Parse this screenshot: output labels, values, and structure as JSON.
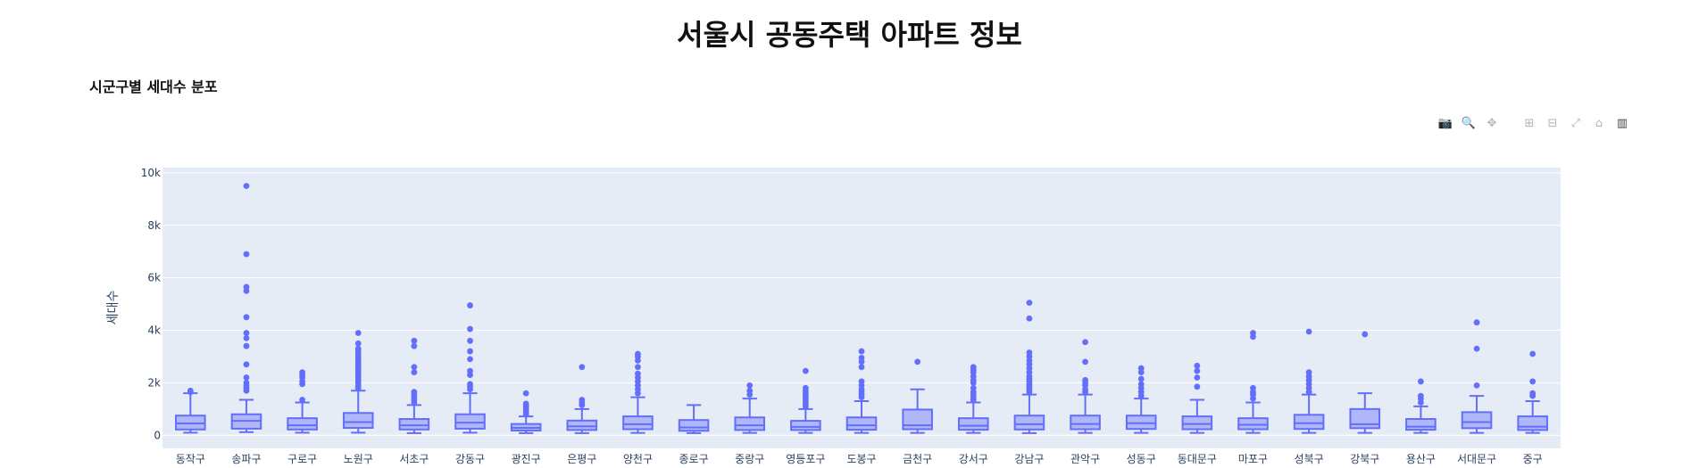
{
  "page_title": "서울시 공동주택 아파트 정보",
  "section_title": "시군구별 세대수 분포",
  "modebar": [
    {
      "name": "camera-icon",
      "glyph": "📷"
    },
    {
      "name": "zoom-icon",
      "glyph": "🔍"
    },
    {
      "name": "pan-icon",
      "glyph": "✥"
    },
    {
      "name": "zoom-in-icon",
      "glyph": "⊞"
    },
    {
      "name": "zoom-out-icon",
      "glyph": "⊟"
    },
    {
      "name": "autoscale-icon",
      "glyph": "⤢"
    },
    {
      "name": "home-icon",
      "glyph": "⌂"
    },
    {
      "name": "plotly-logo-icon",
      "glyph": "▥"
    }
  ],
  "chart_data": {
    "type": "box",
    "ylabel": "세대수",
    "xlabel": "",
    "ylim": [
      -500,
      10200
    ],
    "yticks": [
      0,
      2000,
      4000,
      6000,
      8000,
      10000
    ],
    "ytick_labels": [
      "0",
      "2k",
      "4k",
      "6k",
      "8k",
      "10k"
    ],
    "colors": {
      "box_fill": "#a9b1f8",
      "box_line": "#636efa",
      "plot_bg": "#e5ecf6",
      "grid": "#ffffff",
      "text": "#2a3f5f"
    },
    "grid": true,
    "categories": [
      "동작구",
      "송파구",
      "구로구",
      "노원구",
      "서초구",
      "강동구",
      "광진구",
      "은평구",
      "양천구",
      "종로구",
      "중랑구",
      "영등포구",
      "도봉구",
      "금천구",
      "강서구",
      "강남구",
      "관악구",
      "성동구",
      "동대문구",
      "마포구",
      "성북구",
      "강북구",
      "용산구",
      "서대문구",
      "중구"
    ],
    "boxes": [
      {
        "name": "동작구",
        "lower": 100,
        "q1": 220,
        "median": 450,
        "q3": 750,
        "upper": 1600,
        "outliers": [
          1650,
          1700
        ]
      },
      {
        "name": "송파구",
        "lower": 120,
        "q1": 250,
        "median": 550,
        "q3": 800,
        "upper": 1350,
        "outliers": [
          1700,
          1800,
          1900,
          2000,
          2200,
          2700,
          3400,
          3700,
          3900,
          4500,
          5500,
          5650,
          6900,
          9500
        ]
      },
      {
        "name": "구로구",
        "lower": 100,
        "q1": 220,
        "median": 380,
        "q3": 650,
        "upper": 1250,
        "outliers": [
          1350,
          1950,
          2050,
          2200,
          2300,
          2400
        ]
      },
      {
        "name": "노원구",
        "lower": 100,
        "q1": 280,
        "median": 500,
        "q3": 850,
        "upper": 1700,
        "outliers": [
          1800,
          1900,
          2000,
          2100,
          2200,
          2300,
          2400,
          2500,
          2600,
          2700,
          2800,
          2900,
          3000,
          3100,
          3200,
          3300,
          3500,
          3900
        ]
      },
      {
        "name": "서초구",
        "lower": 80,
        "q1": 220,
        "median": 380,
        "q3": 620,
        "upper": 1150,
        "outliers": [
          1250,
          1350,
          1450,
          1550,
          1650,
          2400,
          2600,
          3400,
          3600
        ]
      },
      {
        "name": "강동구",
        "lower": 100,
        "q1": 250,
        "median": 480,
        "q3": 800,
        "upper": 1600,
        "outliers": [
          1750,
          1850,
          1950,
          2300,
          2450,
          2900,
          3200,
          3600,
          4050,
          4950
        ]
      },
      {
        "name": "광진구",
        "lower": 80,
        "q1": 180,
        "median": 280,
        "q3": 430,
        "upper": 720,
        "outliers": [
          800,
          900,
          1000,
          1100,
          1200,
          1600
        ]
      },
      {
        "name": "은평구",
        "lower": 80,
        "q1": 200,
        "median": 340,
        "q3": 560,
        "upper": 1000,
        "outliers": [
          1150,
          1250,
          1350,
          2600
        ]
      },
      {
        "name": "양천구",
        "lower": 90,
        "q1": 230,
        "median": 420,
        "q3": 720,
        "upper": 1450,
        "outliers": [
          1600,
          1750,
          1900,
          2050,
          2200,
          2350,
          2600,
          2850,
          3000,
          3100
        ]
      },
      {
        "name": "종로구",
        "lower": 80,
        "q1": 170,
        "median": 300,
        "q3": 580,
        "upper": 1150,
        "outliers": []
      },
      {
        "name": "중랑구",
        "lower": 90,
        "q1": 200,
        "median": 380,
        "q3": 680,
        "upper": 1400,
        "outliers": [
          1550,
          1700,
          1900
        ]
      },
      {
        "name": "영등포구",
        "lower": 90,
        "q1": 200,
        "median": 320,
        "q3": 550,
        "upper": 1000,
        "outliers": [
          1100,
          1200,
          1300,
          1400,
          1500,
          1600,
          1700,
          1800,
          2450
        ]
      },
      {
        "name": "도봉구",
        "lower": 90,
        "q1": 210,
        "median": 380,
        "q3": 680,
        "upper": 1300,
        "outliers": [
          1450,
          1550,
          1650,
          1750,
          1900,
          2050,
          2600,
          2800,
          2950,
          3200
        ]
      },
      {
        "name": "금천구",
        "lower": 90,
        "q1": 230,
        "median": 380,
        "q3": 980,
        "upper": 1750,
        "outliers": [
          2800
        ]
      },
      {
        "name": "강서구",
        "lower": 90,
        "q1": 210,
        "median": 360,
        "q3": 650,
        "upper": 1250,
        "outliers": [
          1350,
          1450,
          1550,
          1650,
          1800,
          2000,
          2100,
          2250,
          2400,
          2500,
          2600
        ]
      },
      {
        "name": "강남구",
        "lower": 80,
        "q1": 220,
        "median": 420,
        "q3": 750,
        "upper": 1550,
        "outliers": [
          1650,
          1750,
          1850,
          1950,
          2050,
          2150,
          2250,
          2400,
          2550,
          2700,
          2850,
          3000,
          3150,
          4450,
          5050
        ]
      },
      {
        "name": "관악구",
        "lower": 90,
        "q1": 230,
        "median": 430,
        "q3": 750,
        "upper": 1550,
        "outliers": [
          1650,
          1750,
          1900,
          2000,
          2100,
          2800,
          3550
        ]
      },
      {
        "name": "성동구",
        "lower": 90,
        "q1": 240,
        "median": 460,
        "q3": 750,
        "upper": 1400,
        "outliers": [
          1500,
          1650,
          1800,
          1950,
          2150,
          2400,
          2550
        ]
      },
      {
        "name": "동대문구",
        "lower": 90,
        "q1": 230,
        "median": 430,
        "q3": 720,
        "upper": 1350,
        "outliers": [
          1850,
          2200,
          2450,
          2650
        ]
      },
      {
        "name": "마포구",
        "lower": 90,
        "q1": 230,
        "median": 400,
        "q3": 650,
        "upper": 1250,
        "outliers": [
          1400,
          1550,
          1650,
          1800,
          3750,
          3900
        ]
      },
      {
        "name": "성북구",
        "lower": 90,
        "q1": 240,
        "median": 460,
        "q3": 780,
        "upper": 1550,
        "outliers": [
          1650,
          1800,
          1950,
          2100,
          2250,
          2400,
          3950
        ]
      },
      {
        "name": "강북구",
        "lower": 90,
        "q1": 270,
        "median": 420,
        "q3": 1000,
        "upper": 1600,
        "outliers": [
          3850
        ]
      },
      {
        "name": "용산구",
        "lower": 90,
        "q1": 210,
        "median": 330,
        "q3": 620,
        "upper": 1100,
        "outliers": [
          1250,
          1400,
          1500,
          2050
        ]
      },
      {
        "name": "서대문구",
        "lower": 90,
        "q1": 270,
        "median": 500,
        "q3": 880,
        "upper": 1500,
        "outliers": [
          1900,
          3300,
          4300
        ]
      },
      {
        "name": "중구",
        "lower": 90,
        "q1": 200,
        "median": 330,
        "q3": 720,
        "upper": 1300,
        "outliers": [
          1500,
          1600,
          2050,
          3100
        ]
      }
    ]
  }
}
